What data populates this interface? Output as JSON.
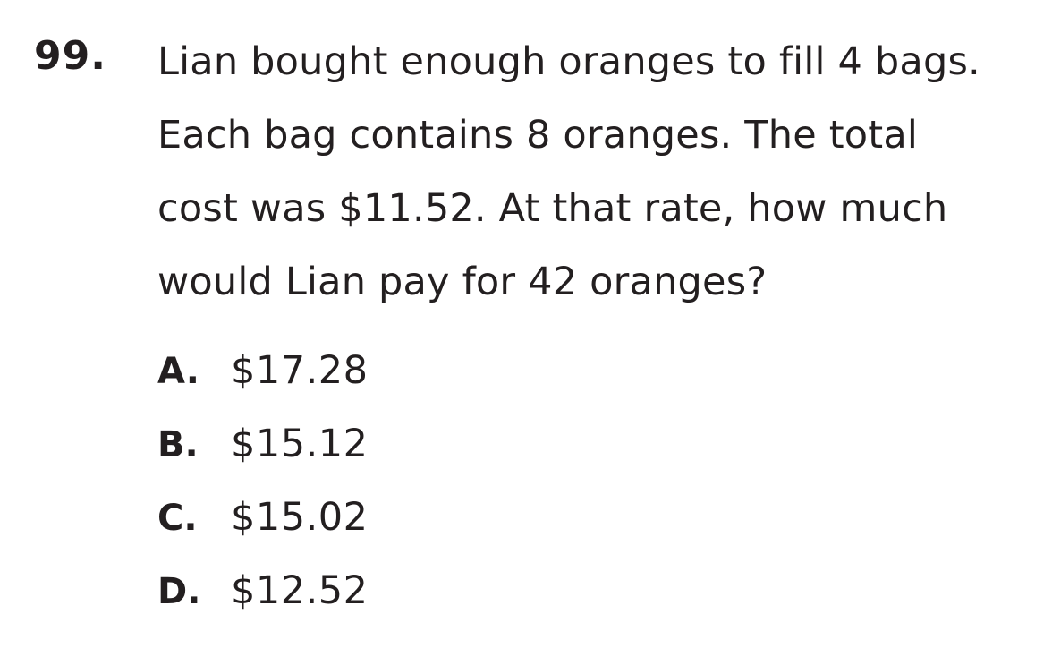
{
  "question": {
    "number": "99.",
    "lines": [
      "Lian bought enough oranges to fill 4 bags.",
      "Each bag contains 8 oranges. The total",
      "cost was $11.52. At that rate, how much",
      "would Lian pay for 42 oranges?"
    ],
    "choices": [
      {
        "letter": "A.",
        "text": "$17.28"
      },
      {
        "letter": "B.",
        "text": "$15.12"
      },
      {
        "letter": "C.",
        "text": "$15.02"
      },
      {
        "letter": "D.",
        "text": "$12.52"
      }
    ]
  }
}
